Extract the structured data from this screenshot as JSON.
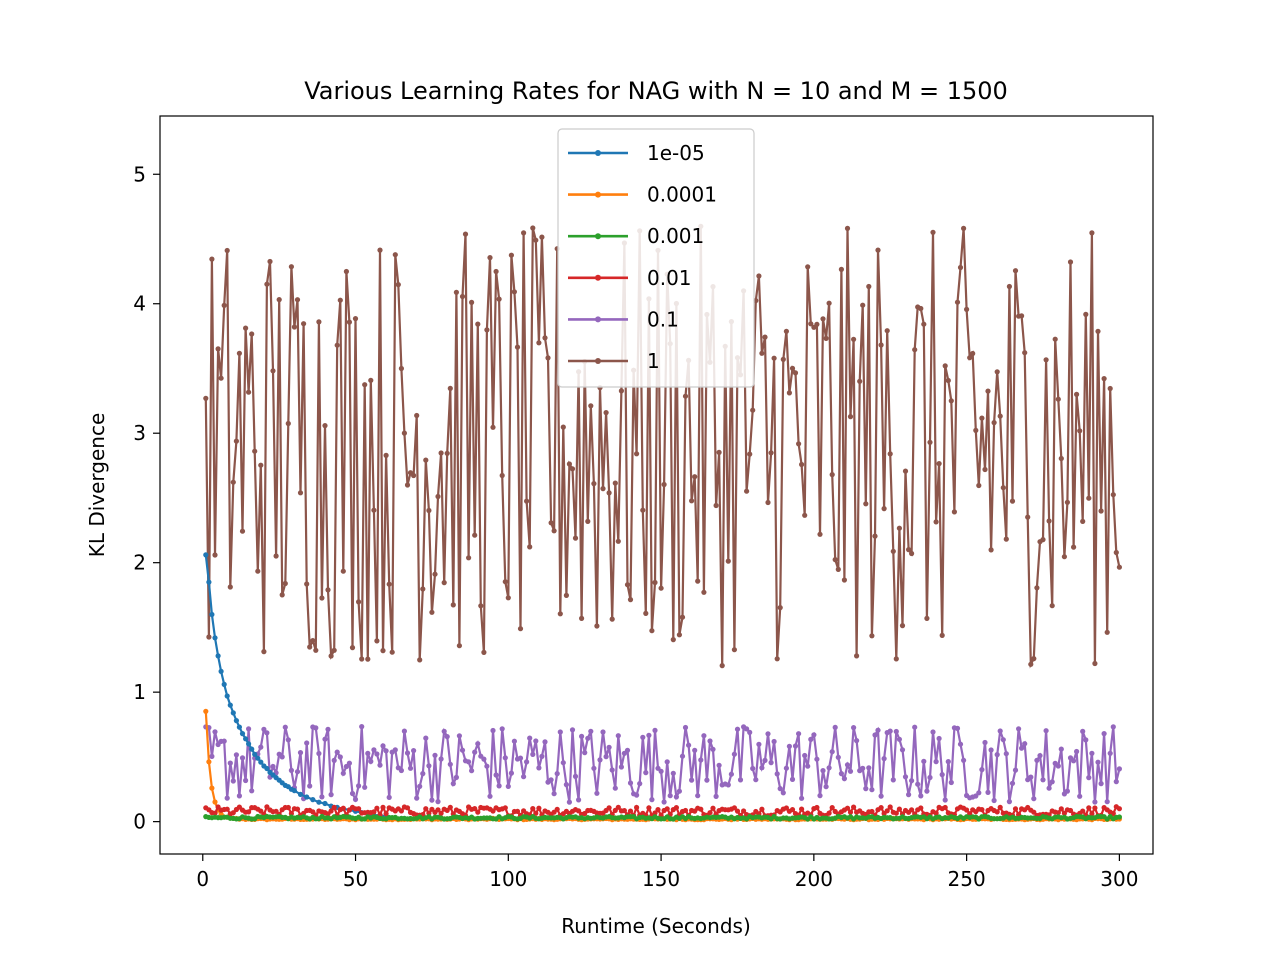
{
  "chart_data": {
    "type": "line",
    "title": "Various Learning Rates for NAG with N = 10 and M = 1500",
    "xlabel": "Runtime (Seconds)",
    "ylabel": "KL Divergence",
    "xlim": [
      -14,
      311
    ],
    "ylim": [
      -0.25,
      5.45
    ],
    "xticks": [
      0,
      50,
      100,
      150,
      200,
      250,
      300
    ],
    "yticks": [
      0,
      1,
      2,
      3,
      4,
      5
    ],
    "grid": false,
    "legend_position": "upper center",
    "series": [
      {
        "name": "1e-05",
        "color": "#1f77b4",
        "x": [
          1,
          2,
          3,
          4,
          5,
          6,
          7,
          8,
          9,
          10,
          11,
          12,
          13,
          14,
          15,
          16,
          17,
          18,
          19,
          20,
          21,
          22,
          23,
          24,
          25,
          26,
          27,
          28,
          29,
          30,
          32,
          34,
          36,
          38,
          40,
          42,
          44,
          46,
          48,
          50,
          52,
          54,
          56,
          58,
          60
        ],
        "y": [
          2.06,
          1.85,
          1.6,
          1.42,
          1.28,
          1.16,
          1.06,
          0.97,
          0.9,
          0.84,
          0.78,
          0.73,
          0.68,
          0.64,
          0.6,
          0.56,
          0.52,
          0.49,
          0.46,
          0.43,
          0.41,
          0.38,
          0.36,
          0.34,
          0.32,
          0.3,
          0.28,
          0.27,
          0.25,
          0.24,
          0.21,
          0.19,
          0.17,
          0.15,
          0.14,
          0.12,
          0.11,
          0.1,
          0.09,
          0.08,
          0.07,
          0.06,
          0.05,
          0.05,
          0.04
        ]
      },
      {
        "name": "0.0001",
        "color": "#ff7f0e",
        "generate": "decay",
        "start": 0.85,
        "end": 0.02,
        "n": 300
      },
      {
        "name": "0.001",
        "color": "#2ca02c",
        "generate": "flat",
        "base": 0.03,
        "amp": 0.01,
        "n": 300
      },
      {
        "name": "0.01",
        "color": "#d62728",
        "generate": "flat",
        "base": 0.08,
        "amp": 0.035,
        "n": 300
      },
      {
        "name": "0.1",
        "color": "#9467bd",
        "generate": "noisy",
        "base": 0.45,
        "amp": 0.3,
        "n": 300
      },
      {
        "name": "1",
        "color": "#8c564b",
        "generate": "noisy",
        "base": 2.9,
        "amp": 1.7,
        "n": 300
      }
    ]
  }
}
